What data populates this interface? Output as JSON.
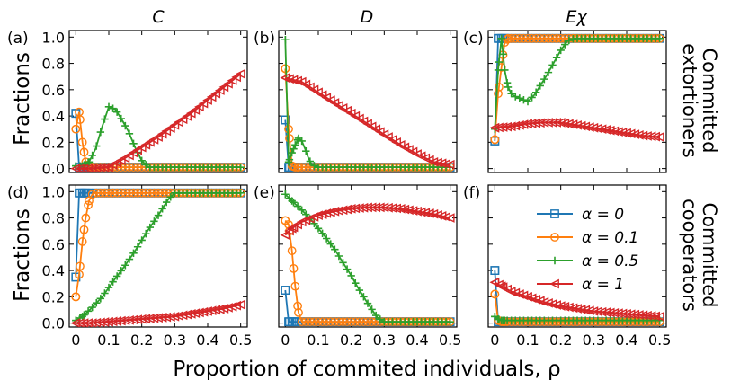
{
  "figure": {
    "column_titles": [
      "C",
      "D",
      "Eχ"
    ],
    "row_labels": [
      [
        "Committed",
        "extortioners"
      ],
      [
        "Committed",
        "cooperators"
      ]
    ],
    "y_axis_label": "Fractions",
    "x_axis_label": "Proportion of commited individuals, ρ"
  },
  "colors": {
    "alpha_0": "#1f77b4",
    "alpha_0.1": "#ff7f0e",
    "alpha_0.5": "#2ca02c",
    "alpha_1": "#d62728"
  },
  "legend": [
    {
      "label": "α = 0",
      "color": "#1f77b4",
      "marker": "square"
    },
    {
      "label": "α = 0.1",
      "color": "#ff7f0e",
      "marker": "circle"
    },
    {
      "label": "α = 0.5",
      "color": "#2ca02c",
      "marker": "plus"
    },
    {
      "label": "α = 1",
      "color": "#d62728",
      "marker": "triangle-left"
    }
  ],
  "chart_data": [
    {
      "type": "line",
      "panel": "(a)",
      "xlim": [
        -0.02,
        0.52
      ],
      "ylim": [
        -0.03,
        1.05
      ],
      "xticks": [
        0,
        0.1,
        0.2,
        0.3,
        0.4,
        0.5
      ],
      "yticks": [
        0.0,
        0.2,
        0.4,
        0.6,
        0.8,
        1.0
      ],
      "show_xtick_labels": false,
      "show_ytick_labels": true,
      "series": [
        {
          "name": "α = 0",
          "x": [
            0,
            0.01,
            0.02,
            0.03,
            0.05,
            0.1,
            0.2,
            0.3,
            0.4,
            0.5
          ],
          "y": [
            0.42,
            0.01,
            0.01,
            0.01,
            0.01,
            0.01,
            0.01,
            0.01,
            0.01,
            0.01
          ]
        },
        {
          "name": "α = 0.1",
          "x": [
            0,
            0.01,
            0.02,
            0.03,
            0.04,
            0.05,
            0.06,
            0.08,
            0.1,
            0.2,
            0.3,
            0.4,
            0.5
          ],
          "y": [
            0.3,
            0.43,
            0.2,
            0.05,
            0.02,
            0.01,
            0.01,
            0.01,
            0.01,
            0.01,
            0.01,
            0.01,
            0.01
          ]
        },
        {
          "name": "α = 0.5",
          "x": [
            0,
            0.02,
            0.04,
            0.06,
            0.08,
            0.1,
            0.12,
            0.14,
            0.16,
            0.18,
            0.2,
            0.22,
            0.24,
            0.3,
            0.4,
            0.5
          ],
          "y": [
            0.02,
            0.02,
            0.05,
            0.15,
            0.32,
            0.47,
            0.45,
            0.37,
            0.28,
            0.16,
            0.06,
            0.01,
            0.01,
            0.01,
            0.01,
            0.01
          ]
        },
        {
          "name": "α = 1",
          "x": [
            0,
            0.05,
            0.1,
            0.15,
            0.2,
            0.25,
            0.3,
            0.35,
            0.4,
            0.45,
            0.5
          ],
          "y": [
            0.0,
            0.0,
            0.01,
            0.08,
            0.16,
            0.24,
            0.33,
            0.42,
            0.52,
            0.62,
            0.72
          ]
        }
      ]
    },
    {
      "type": "line",
      "panel": "(b)",
      "xlim": [
        -0.02,
        0.52
      ],
      "ylim": [
        -0.03,
        1.05
      ],
      "xticks": [
        0,
        0.1,
        0.2,
        0.3,
        0.4,
        0.5
      ],
      "yticks": [
        0.0,
        0.2,
        0.4,
        0.6,
        0.8,
        1.0
      ],
      "show_xtick_labels": false,
      "show_ytick_labels": false,
      "series": [
        {
          "name": "α = 0",
          "x": [
            0,
            0.01,
            0.02,
            0.03,
            0.05,
            0.1,
            0.2,
            0.3,
            0.4,
            0.5
          ],
          "y": [
            0.37,
            0.01,
            0.01,
            0.01,
            0.01,
            0.01,
            0.01,
            0.01,
            0.01,
            0.01
          ]
        },
        {
          "name": "α = 0.1",
          "x": [
            0,
            0.01,
            0.02,
            0.03,
            0.04,
            0.05,
            0.1,
            0.2,
            0.3,
            0.4,
            0.5
          ],
          "y": [
            0.76,
            0.3,
            0.02,
            0.01,
            0.01,
            0.01,
            0.01,
            0.01,
            0.01,
            0.01,
            0.01
          ]
        },
        {
          "name": "α = 0.5",
          "x": [
            0,
            0.01,
            0.02,
            0.03,
            0.04,
            0.05,
            0.06,
            0.07,
            0.08,
            0.1,
            0.2,
            0.3,
            0.4,
            0.5
          ],
          "y": [
            0.98,
            0.05,
            0.12,
            0.18,
            0.23,
            0.21,
            0.15,
            0.08,
            0.03,
            0.01,
            0.01,
            0.01,
            0.01,
            0.01
          ]
        },
        {
          "name": "α = 1",
          "x": [
            0,
            0.05,
            0.1,
            0.15,
            0.2,
            0.25,
            0.3,
            0.35,
            0.4,
            0.45,
            0.5
          ],
          "y": [
            0.69,
            0.66,
            0.58,
            0.5,
            0.42,
            0.34,
            0.26,
            0.18,
            0.11,
            0.05,
            0.03
          ]
        }
      ]
    },
    {
      "type": "line",
      "panel": "(c)",
      "xlim": [
        -0.02,
        0.52
      ],
      "ylim": [
        -0.03,
        1.05
      ],
      "xticks": [
        0,
        0.1,
        0.2,
        0.3,
        0.4,
        0.5
      ],
      "yticks": [
        0.0,
        0.2,
        0.4,
        0.6,
        0.8,
        1.0
      ],
      "show_xtick_labels": false,
      "show_ytick_labels": false,
      "series": [
        {
          "name": "α = 0",
          "x": [
            0,
            0.01,
            0.02,
            0.03,
            0.05,
            0.1,
            0.2,
            0.3,
            0.4,
            0.5
          ],
          "y": [
            0.21,
            0.99,
            0.99,
            0.99,
            0.99,
            0.99,
            0.99,
            0.99,
            0.99,
            0.99
          ]
        },
        {
          "name": "α = 0.1",
          "x": [
            0,
            0.01,
            0.02,
            0.03,
            0.04,
            0.05,
            0.1,
            0.2,
            0.3,
            0.4,
            0.5
          ],
          "y": [
            0.22,
            0.57,
            0.77,
            0.96,
            0.99,
            0.99,
            0.99,
            0.99,
            0.99,
            0.99,
            0.99
          ]
        },
        {
          "name": "α = 0.5",
          "x": [
            0,
            0.01,
            0.02,
            0.03,
            0.04,
            0.05,
            0.06,
            0.08,
            0.1,
            0.12,
            0.14,
            0.16,
            0.18,
            0.2,
            0.22,
            0.24,
            0.3,
            0.4,
            0.5
          ],
          "y": [
            0.3,
            0.75,
            0.99,
            0.75,
            0.62,
            0.57,
            0.55,
            0.53,
            0.51,
            0.56,
            0.64,
            0.72,
            0.81,
            0.9,
            0.97,
            0.99,
            0.99,
            0.99,
            0.99
          ]
        },
        {
          "name": "α = 1",
          "x": [
            0,
            0.05,
            0.1,
            0.15,
            0.2,
            0.25,
            0.3,
            0.35,
            0.4,
            0.45,
            0.5
          ],
          "y": [
            0.31,
            0.32,
            0.34,
            0.35,
            0.35,
            0.33,
            0.31,
            0.29,
            0.27,
            0.25,
            0.24
          ]
        }
      ]
    },
    {
      "type": "line",
      "panel": "(d)",
      "xlim": [
        -0.02,
        0.52
      ],
      "ylim": [
        -0.03,
        1.05
      ],
      "xticks": [
        0,
        0.1,
        0.2,
        0.3,
        0.4,
        0.5
      ],
      "yticks": [
        0.0,
        0.2,
        0.4,
        0.6,
        0.8,
        1.0
      ],
      "show_xtick_labels": true,
      "show_ytick_labels": true,
      "xtick_labels": [
        "0",
        "0.1",
        "0.2",
        "0.3",
        "0.4",
        "0.5"
      ],
      "series": [
        {
          "name": "α = 0",
          "x": [
            0,
            0.01,
            0.02,
            0.03,
            0.05,
            0.1,
            0.2,
            0.3,
            0.4,
            0.5
          ],
          "y": [
            0.35,
            0.99,
            0.99,
            0.99,
            0.99,
            0.99,
            0.99,
            0.99,
            0.99,
            0.99
          ]
        },
        {
          "name": "α = 0.1",
          "x": [
            0,
            0.01,
            0.02,
            0.03,
            0.04,
            0.05,
            0.06,
            0.08,
            0.1,
            0.2,
            0.3,
            0.4,
            0.5
          ],
          "y": [
            0.2,
            0.37,
            0.62,
            0.8,
            0.93,
            0.98,
            0.99,
            0.99,
            0.99,
            0.99,
            0.99,
            0.99,
            0.99
          ]
        },
        {
          "name": "α = 0.5",
          "x": [
            0,
            0.02,
            0.05,
            0.08,
            0.1,
            0.12,
            0.15,
            0.18,
            0.2,
            0.22,
            0.25,
            0.28,
            0.3,
            0.35,
            0.4,
            0.5
          ],
          "y": [
            0.02,
            0.05,
            0.12,
            0.2,
            0.27,
            0.34,
            0.44,
            0.55,
            0.63,
            0.71,
            0.82,
            0.94,
            0.99,
            0.99,
            0.99,
            0.99
          ]
        },
        {
          "name": "α = 1",
          "x": [
            0,
            0.05,
            0.1,
            0.15,
            0.2,
            0.25,
            0.3,
            0.35,
            0.4,
            0.45,
            0.5
          ],
          "y": [
            0.0,
            0.0,
            0.01,
            0.02,
            0.03,
            0.04,
            0.05,
            0.07,
            0.09,
            0.11,
            0.14
          ]
        }
      ]
    },
    {
      "type": "line",
      "panel": "(e)",
      "xlim": [
        -0.02,
        0.52
      ],
      "ylim": [
        -0.03,
        1.05
      ],
      "xticks": [
        0,
        0.1,
        0.2,
        0.3,
        0.4,
        0.5
      ],
      "yticks": [
        0.0,
        0.2,
        0.4,
        0.6,
        0.8,
        1.0
      ],
      "show_xtick_labels": true,
      "show_ytick_labels": false,
      "xtick_labels": [
        "0",
        "0.1",
        "0.2",
        "0.3",
        "0.4",
        "0.5"
      ],
      "series": [
        {
          "name": "α = 0",
          "x": [
            0,
            0.01,
            0.02,
            0.03,
            0.05,
            0.1,
            0.2,
            0.3,
            0.4,
            0.5
          ],
          "y": [
            0.25,
            0.01,
            0.01,
            0.01,
            0.01,
            0.01,
            0.01,
            0.01,
            0.01,
            0.01
          ]
        },
        {
          "name": "α = 0.1",
          "x": [
            0,
            0.01,
            0.02,
            0.03,
            0.04,
            0.05,
            0.1,
            0.2,
            0.3,
            0.4,
            0.5
          ],
          "y": [
            0.78,
            0.75,
            0.55,
            0.28,
            0.08,
            0.01,
            0.01,
            0.01,
            0.01,
            0.01,
            0.01
          ]
        },
        {
          "name": "α = 0.5",
          "x": [
            0,
            0.02,
            0.05,
            0.08,
            0.1,
            0.12,
            0.15,
            0.18,
            0.2,
            0.22,
            0.25,
            0.28,
            0.3,
            0.4,
            0.5
          ],
          "y": [
            0.98,
            0.93,
            0.86,
            0.78,
            0.72,
            0.66,
            0.56,
            0.44,
            0.36,
            0.27,
            0.15,
            0.04,
            0.01,
            0.01,
            0.01
          ]
        },
        {
          "name": "α = 1",
          "x": [
            0,
            0.02,
            0.05,
            0.1,
            0.15,
            0.2,
            0.25,
            0.3,
            0.35,
            0.4,
            0.45,
            0.5
          ],
          "y": [
            0.67,
            0.72,
            0.77,
            0.82,
            0.85,
            0.87,
            0.88,
            0.88,
            0.87,
            0.85,
            0.83,
            0.8
          ]
        }
      ]
    },
    {
      "type": "line",
      "panel": "(f)",
      "xlim": [
        -0.02,
        0.52
      ],
      "ylim": [
        -0.03,
        1.05
      ],
      "xticks": [
        0,
        0.1,
        0.2,
        0.3,
        0.4,
        0.5
      ],
      "yticks": [
        0.0,
        0.2,
        0.4,
        0.6,
        0.8,
        1.0
      ],
      "show_xtick_labels": true,
      "show_ytick_labels": false,
      "xtick_labels": [
        "0",
        "0.1",
        "0.2",
        "0.3",
        "0.4",
        "0.5"
      ],
      "legend_position": "upper-right",
      "series": [
        {
          "name": "α = 0",
          "x": [
            0,
            0.01,
            0.02,
            0.03,
            0.05,
            0.1,
            0.2,
            0.3,
            0.4,
            0.5
          ],
          "y": [
            0.4,
            0.01,
            0.01,
            0.01,
            0.01,
            0.01,
            0.01,
            0.01,
            0.01,
            0.01
          ]
        },
        {
          "name": "α = 0.1",
          "x": [
            0,
            0.01,
            0.02,
            0.03,
            0.05,
            0.1,
            0.2,
            0.3,
            0.4,
            0.5
          ],
          "y": [
            0.22,
            0.02,
            0.01,
            0.01,
            0.01,
            0.01,
            0.01,
            0.01,
            0.01,
            0.01
          ]
        },
        {
          "name": "α = 0.5",
          "x": [
            0,
            0.01,
            0.02,
            0.03,
            0.05,
            0.1,
            0.2,
            0.3,
            0.4,
            0.5
          ],
          "y": [
            0.05,
            0.03,
            0.02,
            0.02,
            0.02,
            0.02,
            0.02,
            0.02,
            0.02,
            0.02
          ]
        },
        {
          "name": "α = 1",
          "x": [
            0,
            0.02,
            0.05,
            0.1,
            0.15,
            0.2,
            0.25,
            0.3,
            0.35,
            0.4,
            0.45,
            0.5
          ],
          "y": [
            0.31,
            0.28,
            0.24,
            0.2,
            0.16,
            0.13,
            0.11,
            0.09,
            0.08,
            0.07,
            0.06,
            0.05
          ]
        }
      ]
    }
  ]
}
